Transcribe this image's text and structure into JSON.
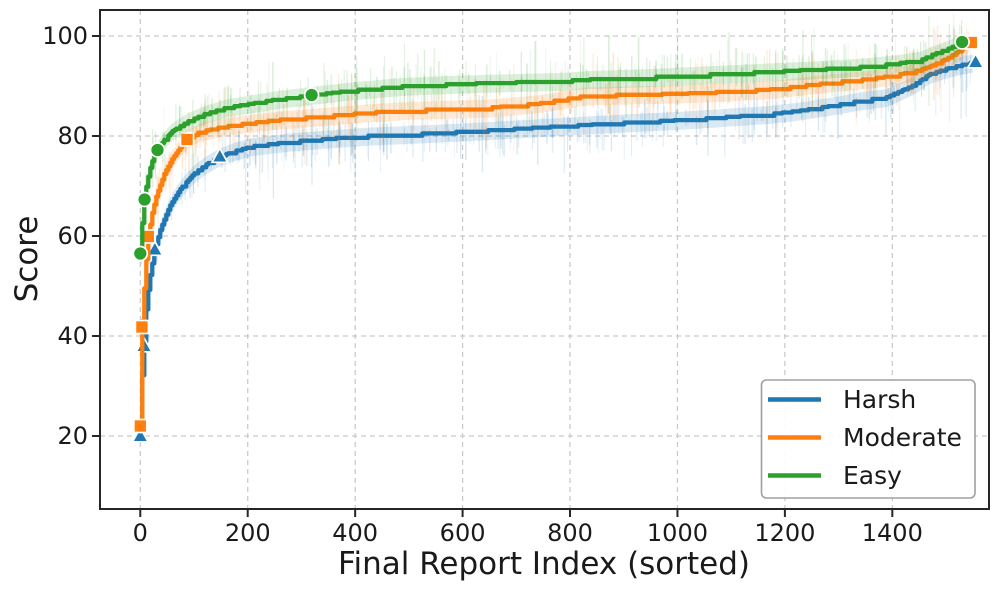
{
  "figure": {
    "background": "#ffffff",
    "text_color": "#1a1a1a",
    "spine_color": "#262626",
    "grid_color": "#c9c9c9"
  },
  "chart_data": {
    "type": "line",
    "title": "",
    "xlabel": "Final Report Index (sorted)",
    "ylabel": "Score",
    "xlim": [
      -75,
      1580
    ],
    "ylim": [
      5.4,
      105.2
    ],
    "x_ticks": [
      0,
      200,
      400,
      600,
      800,
      1000,
      1200,
      1400
    ],
    "y_ticks": [
      20,
      40,
      60,
      80,
      100
    ],
    "grid": "dashed",
    "legend_position": "lower right",
    "series": [
      {
        "name": "Harsh",
        "color": "#1f77b4",
        "marker": "triangle",
        "markers_x": [
          0,
          7,
          27,
          148,
          1555
        ],
        "points": [
          [
            0,
            20
          ],
          [
            2,
            27
          ],
          [
            4,
            33
          ],
          [
            7,
            38
          ],
          [
            10,
            44
          ],
          [
            14,
            48.5
          ],
          [
            19,
            52.5
          ],
          [
            27,
            57.3
          ],
          [
            38,
            61.5
          ],
          [
            55,
            66
          ],
          [
            75,
            69.5
          ],
          [
            100,
            72.5
          ],
          [
            125,
            74.5
          ],
          [
            148,
            75.9
          ],
          [
            175,
            77
          ],
          [
            210,
            78
          ],
          [
            280,
            78.9
          ],
          [
            350,
            79.5
          ],
          [
            430,
            80.1
          ],
          [
            520,
            80.5
          ],
          [
            600,
            80.9
          ],
          [
            700,
            81.5
          ],
          [
            800,
            82.1
          ],
          [
            900,
            82.7
          ],
          [
            1000,
            83.2
          ],
          [
            1100,
            83.9
          ],
          [
            1170,
            84.4
          ],
          [
            1228,
            85.1
          ],
          [
            1300,
            86.3
          ],
          [
            1340,
            87.1
          ],
          [
            1390,
            87.8
          ],
          [
            1438,
            90.1
          ],
          [
            1470,
            92.4
          ],
          [
            1505,
            93.6
          ],
          [
            1535,
            94.4
          ],
          [
            1555,
            94.8
          ]
        ]
      },
      {
        "name": "Moderate",
        "color": "#ff7f0e",
        "marker": "square",
        "markers_x": [
          0,
          3,
          15,
          87,
          1547
        ],
        "points": [
          [
            0,
            22
          ],
          [
            1,
            28
          ],
          [
            3,
            41.8
          ],
          [
            6,
            47
          ],
          [
            10,
            54
          ],
          [
            15,
            59.9
          ],
          [
            22,
            64.5
          ],
          [
            30,
            68
          ],
          [
            45,
            72.5
          ],
          [
            60,
            75.5
          ],
          [
            75,
            77.8
          ],
          [
            87,
            79.3
          ],
          [
            110,
            80.8
          ],
          [
            150,
            81.8
          ],
          [
            200,
            82.6
          ],
          [
            260,
            83.3
          ],
          [
            330,
            83.9
          ],
          [
            420,
            84.7
          ],
          [
            500,
            85.2
          ],
          [
            650,
            85.7
          ],
          [
            745,
            86.6
          ],
          [
            830,
            88.1
          ],
          [
            1000,
            88.5
          ],
          [
            1090,
            88.9
          ],
          [
            1180,
            89.4
          ],
          [
            1240,
            90.2
          ],
          [
            1304,
            90.9
          ],
          [
            1360,
            91.5
          ],
          [
            1400,
            92.1
          ],
          [
            1440,
            92.9
          ],
          [
            1470,
            93.9
          ],
          [
            1500,
            95.4
          ],
          [
            1520,
            96.7
          ],
          [
            1535,
            97.8
          ],
          [
            1547,
            98.7
          ]
        ]
      },
      {
        "name": "Easy",
        "color": "#2ca02c",
        "marker": "circle",
        "markers_x": [
          0,
          8,
          32,
          319,
          1530
        ],
        "points": [
          [
            0,
            56.5
          ],
          [
            2,
            60
          ],
          [
            5,
            64.5
          ],
          [
            8,
            67.3
          ],
          [
            12,
            70.5
          ],
          [
            20,
            74.3
          ],
          [
            26,
            76
          ],
          [
            32,
            77.2
          ],
          [
            45,
            79.3
          ],
          [
            60,
            81
          ],
          [
            90,
            83
          ],
          [
            120,
            84.4
          ],
          [
            160,
            85.7
          ],
          [
            200,
            86.4
          ],
          [
            250,
            87.3
          ],
          [
            319,
            88.2
          ],
          [
            400,
            89.2
          ],
          [
            490,
            90
          ],
          [
            600,
            90.5
          ],
          [
            700,
            90.8
          ],
          [
            780,
            91
          ],
          [
            840,
            91.4
          ],
          [
            950,
            91.8
          ],
          [
            1050,
            92.3
          ],
          [
            1150,
            92.8
          ],
          [
            1250,
            93.3
          ],
          [
            1350,
            93.9
          ],
          [
            1420,
            94.7
          ],
          [
            1455,
            95.3
          ],
          [
            1475,
            96.3
          ],
          [
            1500,
            97.3
          ],
          [
            1515,
            98
          ],
          [
            1530,
            98.8
          ]
        ]
      }
    ]
  },
  "legend": {
    "items": [
      {
        "label": "Harsh",
        "color": "#1f77b4"
      },
      {
        "label": "Moderate",
        "color": "#ff7f0e"
      },
      {
        "label": "Easy",
        "color": "#2ca02c"
      }
    ]
  }
}
